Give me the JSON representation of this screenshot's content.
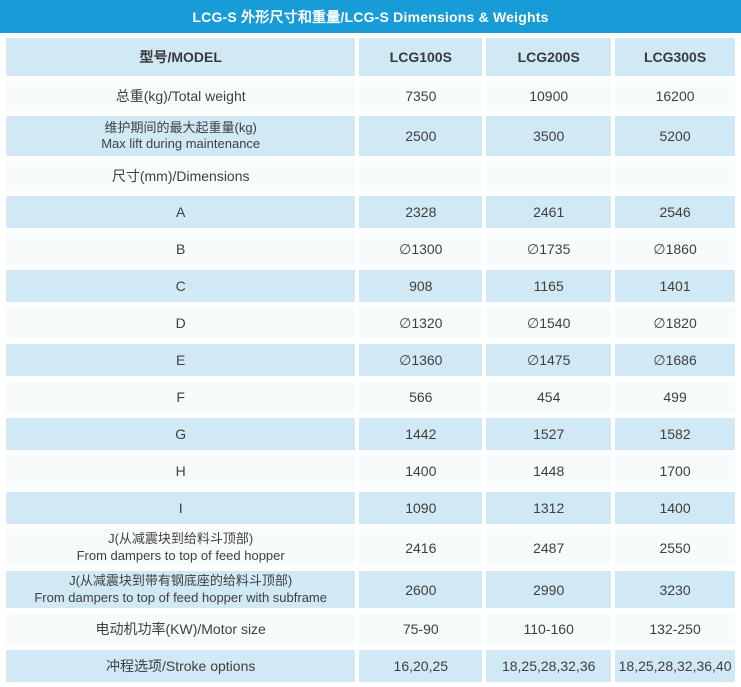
{
  "title": "LCG-S 外形尺寸和重量/LCG-S Dimensions & Weights",
  "colors": {
    "header_bar": "#189cd8",
    "row_light_blue": "#d0e9f5",
    "row_white": "#f7fbfc",
    "text": "#3f3f3f",
    "title_text": "#ffffff"
  },
  "table": {
    "header": {
      "model_label": "型号/MODEL",
      "columns": [
        "LCG100S",
        "LCG200S",
        "LCG300S"
      ]
    },
    "rows": [
      {
        "label": "总重(kg)/Total weight",
        "values": [
          "7350",
          "10900",
          "16200"
        ]
      },
      {
        "label": "维护期间的最大起重量(kg)",
        "label2": "Max lift during maintenance",
        "values": [
          "2500",
          "3500",
          "5200"
        ]
      },
      {
        "label": "尺寸(mm)/Dimensions",
        "values": [
          "",
          "",
          ""
        ]
      },
      {
        "label": "A",
        "values": [
          "2328",
          "2461",
          "2546"
        ]
      },
      {
        "label": "B",
        "values": [
          "∅1300",
          "∅1735",
          "∅1860"
        ]
      },
      {
        "label": "C",
        "values": [
          "908",
          "1165",
          "1401"
        ]
      },
      {
        "label": "D",
        "values": [
          "∅1320",
          "∅1540",
          "∅1820"
        ]
      },
      {
        "label": "E",
        "values": [
          "∅1360",
          "∅1475",
          "∅1686"
        ]
      },
      {
        "label": "F",
        "values": [
          "566",
          "454",
          "499"
        ]
      },
      {
        "label": "G",
        "values": [
          "1442",
          "1527",
          "1582"
        ]
      },
      {
        "label": "H",
        "values": [
          "1400",
          "1448",
          "1700"
        ]
      },
      {
        "label": "I",
        "values": [
          "1090",
          "1312",
          "1400"
        ]
      },
      {
        "label": "J(从减震块到给料斗顶部)",
        "label2": "From dampers to top of feed hopper",
        "values": [
          "2416",
          "2487",
          "2550"
        ]
      },
      {
        "label": "J(从减震块到带有钢底座的给料斗顶部)",
        "label2": "From dampers to top of feed hopper with subframe",
        "values": [
          "2600",
          "2990",
          "3230"
        ]
      },
      {
        "label": "电动机功率(KW)/Motor size",
        "values": [
          "75-90",
          "110-160",
          "132-250"
        ]
      },
      {
        "label": "冲程选项/Stroke options",
        "values": [
          "16,20,25",
          "18,25,28,32,36",
          "18,25,28,32,36,40"
        ]
      }
    ]
  }
}
